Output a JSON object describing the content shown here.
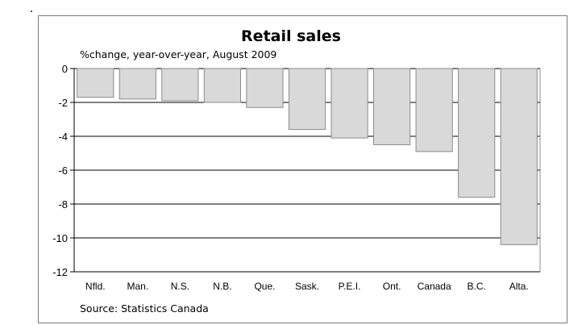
{
  "chart_data": {
    "type": "bar",
    "title": "Retail sales",
    "subtitle": "%change, year-over-year, August 2009",
    "source": "Source: Statistics Canada",
    "categories": [
      "Nfld.",
      "Man.",
      "N.S.",
      "N.B.",
      "Que.",
      "Sask.",
      "P.E.I.",
      "Ont.",
      "Canada",
      "B.C.",
      "Alta."
    ],
    "values": [
      -1.7,
      -1.8,
      -1.9,
      -2.0,
      -2.3,
      -3.6,
      -4.1,
      -4.5,
      -4.9,
      -7.6,
      -10.4
    ],
    "ylim": [
      -12,
      0
    ],
    "yticks": [
      0,
      -2,
      -4,
      -6,
      -8,
      -10,
      -12
    ],
    "grid": true,
    "bar_color": "#d9d9d9",
    "bar_edge_color": "#8c8c8c"
  }
}
